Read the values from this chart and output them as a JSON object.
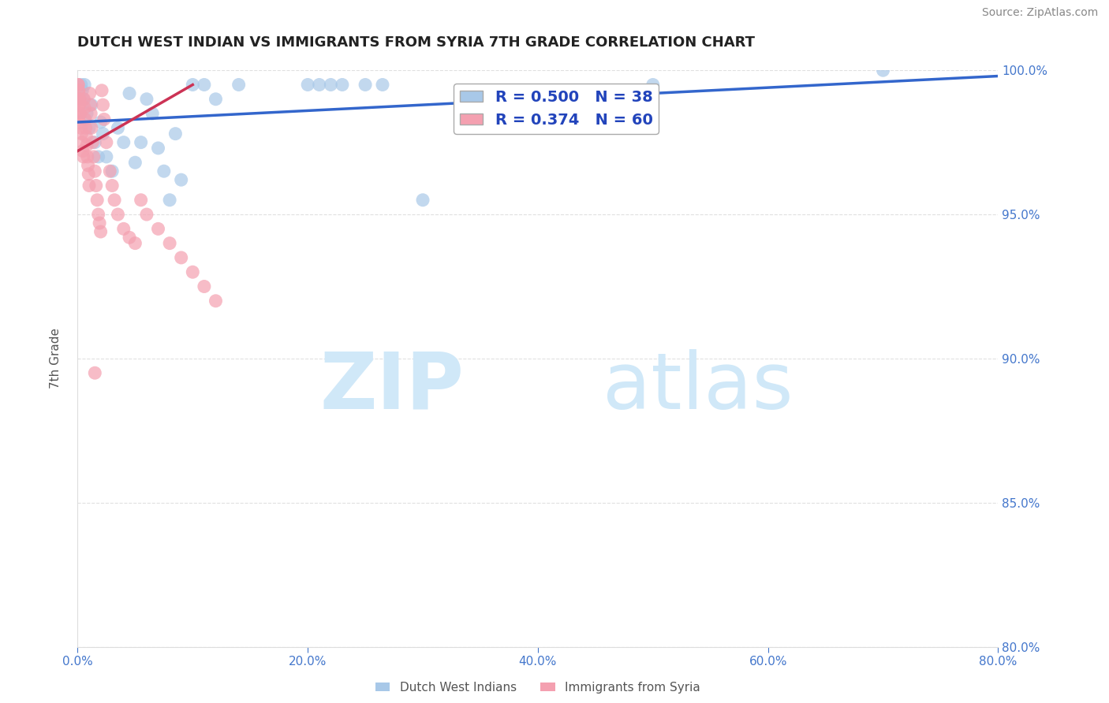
{
  "title": "DUTCH WEST INDIAN VS IMMIGRANTS FROM SYRIA 7TH GRADE CORRELATION CHART",
  "source": "Source: ZipAtlas.com",
  "xlabel": "",
  "ylabel": "7th Grade",
  "xlim": [
    0.0,
    80.0
  ],
  "ylim": [
    80.0,
    100.0
  ],
  "xticks": [
    0.0,
    20.0,
    40.0,
    60.0,
    80.0
  ],
  "yticks": [
    80.0,
    85.0,
    90.0,
    95.0,
    100.0
  ],
  "blue_R": 0.5,
  "blue_N": 38,
  "pink_R": 0.374,
  "pink_N": 60,
  "blue_color": "#a8c8e8",
  "pink_color": "#f4a0b0",
  "blue_line_color": "#3366cc",
  "pink_line_color": "#cc3355",
  "watermark_zip": "ZIP",
  "watermark_atlas": "atlas",
  "watermark_color": "#d0e8f8",
  "legend_label_blue": "Dutch West Indians",
  "legend_label_pink": "Immigrants from Syria",
  "blue_points_x": [
    0.3,
    0.4,
    0.5,
    0.6,
    0.8,
    1.0,
    1.2,
    1.5,
    1.8,
    2.0,
    2.2,
    2.5,
    3.0,
    3.5,
    4.0,
    4.5,
    5.0,
    5.5,
    6.0,
    6.5,
    7.0,
    7.5,
    8.0,
    8.5,
    9.0,
    10.0,
    11.0,
    12.0,
    14.0,
    20.0,
    21.0,
    22.0,
    23.0,
    25.0,
    26.5,
    30.0,
    50.0,
    70.0
  ],
  "blue_points_y": [
    99.5,
    99.3,
    99.0,
    99.5,
    98.5,
    98.0,
    98.8,
    97.5,
    97.0,
    98.2,
    97.8,
    97.0,
    96.5,
    98.0,
    97.5,
    99.2,
    96.8,
    97.5,
    99.0,
    98.5,
    97.3,
    96.5,
    95.5,
    97.8,
    96.2,
    99.5,
    99.5,
    99.0,
    99.5,
    99.5,
    99.5,
    99.5,
    99.5,
    99.5,
    99.5,
    95.5,
    99.5,
    100.0
  ],
  "pink_points_x": [
    0.05,
    0.1,
    0.12,
    0.15,
    0.18,
    0.2,
    0.25,
    0.3,
    0.35,
    0.4,
    0.45,
    0.5,
    0.55,
    0.6,
    0.65,
    0.7,
    0.75,
    0.8,
    0.85,
    0.9,
    0.95,
    1.0,
    1.05,
    1.1,
    1.15,
    1.2,
    1.3,
    1.4,
    1.5,
    1.6,
    1.7,
    1.8,
    1.9,
    2.0,
    2.1,
    2.2,
    2.3,
    2.5,
    2.8,
    3.0,
    3.2,
    3.5,
    4.0,
    4.5,
    5.0,
    5.5,
    6.0,
    7.0,
    8.0,
    9.0,
    10.0,
    11.0,
    12.0,
    0.05,
    0.07,
    0.08,
    0.1,
    0.12,
    0.15,
    1.5
  ],
  "pink_points_y": [
    99.5,
    99.3,
    99.0,
    98.8,
    98.5,
    99.0,
    98.5,
    98.0,
    97.8,
    97.5,
    97.2,
    97.0,
    99.0,
    98.7,
    98.3,
    98.0,
    97.7,
    97.4,
    97.0,
    96.7,
    96.4,
    96.0,
    99.2,
    98.8,
    98.5,
    98.0,
    97.5,
    97.0,
    96.5,
    96.0,
    95.5,
    95.0,
    94.7,
    94.4,
    99.3,
    98.8,
    98.3,
    97.5,
    96.5,
    96.0,
    95.5,
    95.0,
    94.5,
    94.2,
    94.0,
    95.5,
    95.0,
    94.5,
    94.0,
    93.5,
    93.0,
    92.5,
    92.0,
    99.5,
    99.3,
    99.0,
    98.8,
    98.5,
    98.2,
    89.5
  ],
  "blue_trendline_x0": 0.0,
  "blue_trendline_y0": 98.2,
  "blue_trendline_x1": 80.0,
  "blue_trendline_y1": 99.8,
  "pink_trendline_x0": 0.0,
  "pink_trendline_y0": 97.2,
  "pink_trendline_x1": 10.0,
  "pink_trendline_y1": 99.5,
  "tick_color": "#4477cc",
  "grid_color": "#cccccc",
  "title_color": "#222222",
  "legend_text_color": "#2244bb"
}
